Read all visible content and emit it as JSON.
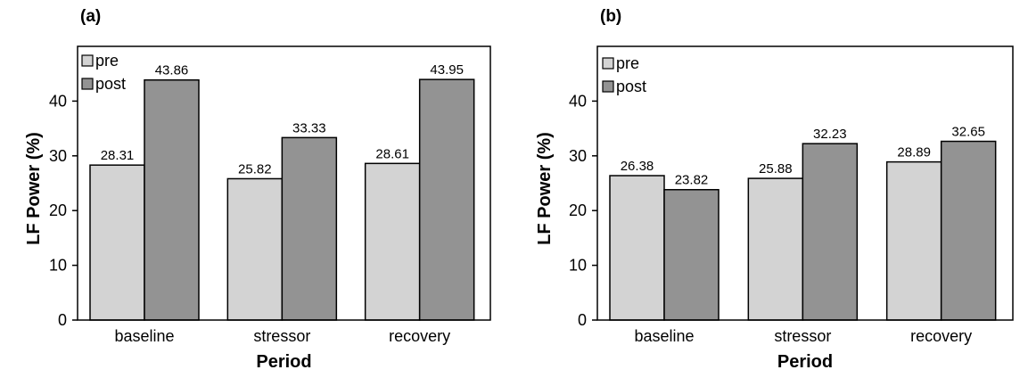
{
  "chart_data": [
    {
      "type": "bar",
      "panel_label": "(a)",
      "categories": [
        "baseline",
        "stressor",
        "recovery"
      ],
      "series": [
        {
          "name": "pre",
          "values": [
            28.31,
            25.82,
            28.61
          ],
          "color": "#d3d3d3",
          "labels": [
            "28.31",
            "25.82",
            "28.61"
          ]
        },
        {
          "name": "post",
          "values": [
            43.86,
            33.33,
            43.95
          ],
          "color": "#939393",
          "labels": [
            "43.86",
            "33.33",
            "43.95"
          ]
        }
      ],
      "xlabel": "Period",
      "ylabel": "LF Power (%)",
      "ylim": [
        0,
        50
      ],
      "yticks": [
        "0",
        "10",
        "20",
        "30",
        "40"
      ],
      "legend": "top-left",
      "grid": false
    },
    {
      "type": "bar",
      "panel_label": "(b)",
      "categories": [
        "baseline",
        "stressor",
        "recovery"
      ],
      "series": [
        {
          "name": "pre",
          "values": [
            26.38,
            25.88,
            28.89
          ],
          "color": "#d3d3d3",
          "labels": [
            "26.38",
            "25.88",
            "28.89"
          ]
        },
        {
          "name": "post",
          "values": [
            23.82,
            32.23,
            32.65
          ],
          "color": "#939393",
          "labels": [
            "23.82",
            "32.23",
            "32.65"
          ]
        }
      ],
      "xlabel": "Period",
      "ylabel": "LF Power (%)",
      "ylim": [
        0,
        50
      ],
      "yticks": [
        "0",
        "10",
        "20",
        "30",
        "40"
      ],
      "legend": "top-left",
      "grid": false
    }
  ]
}
